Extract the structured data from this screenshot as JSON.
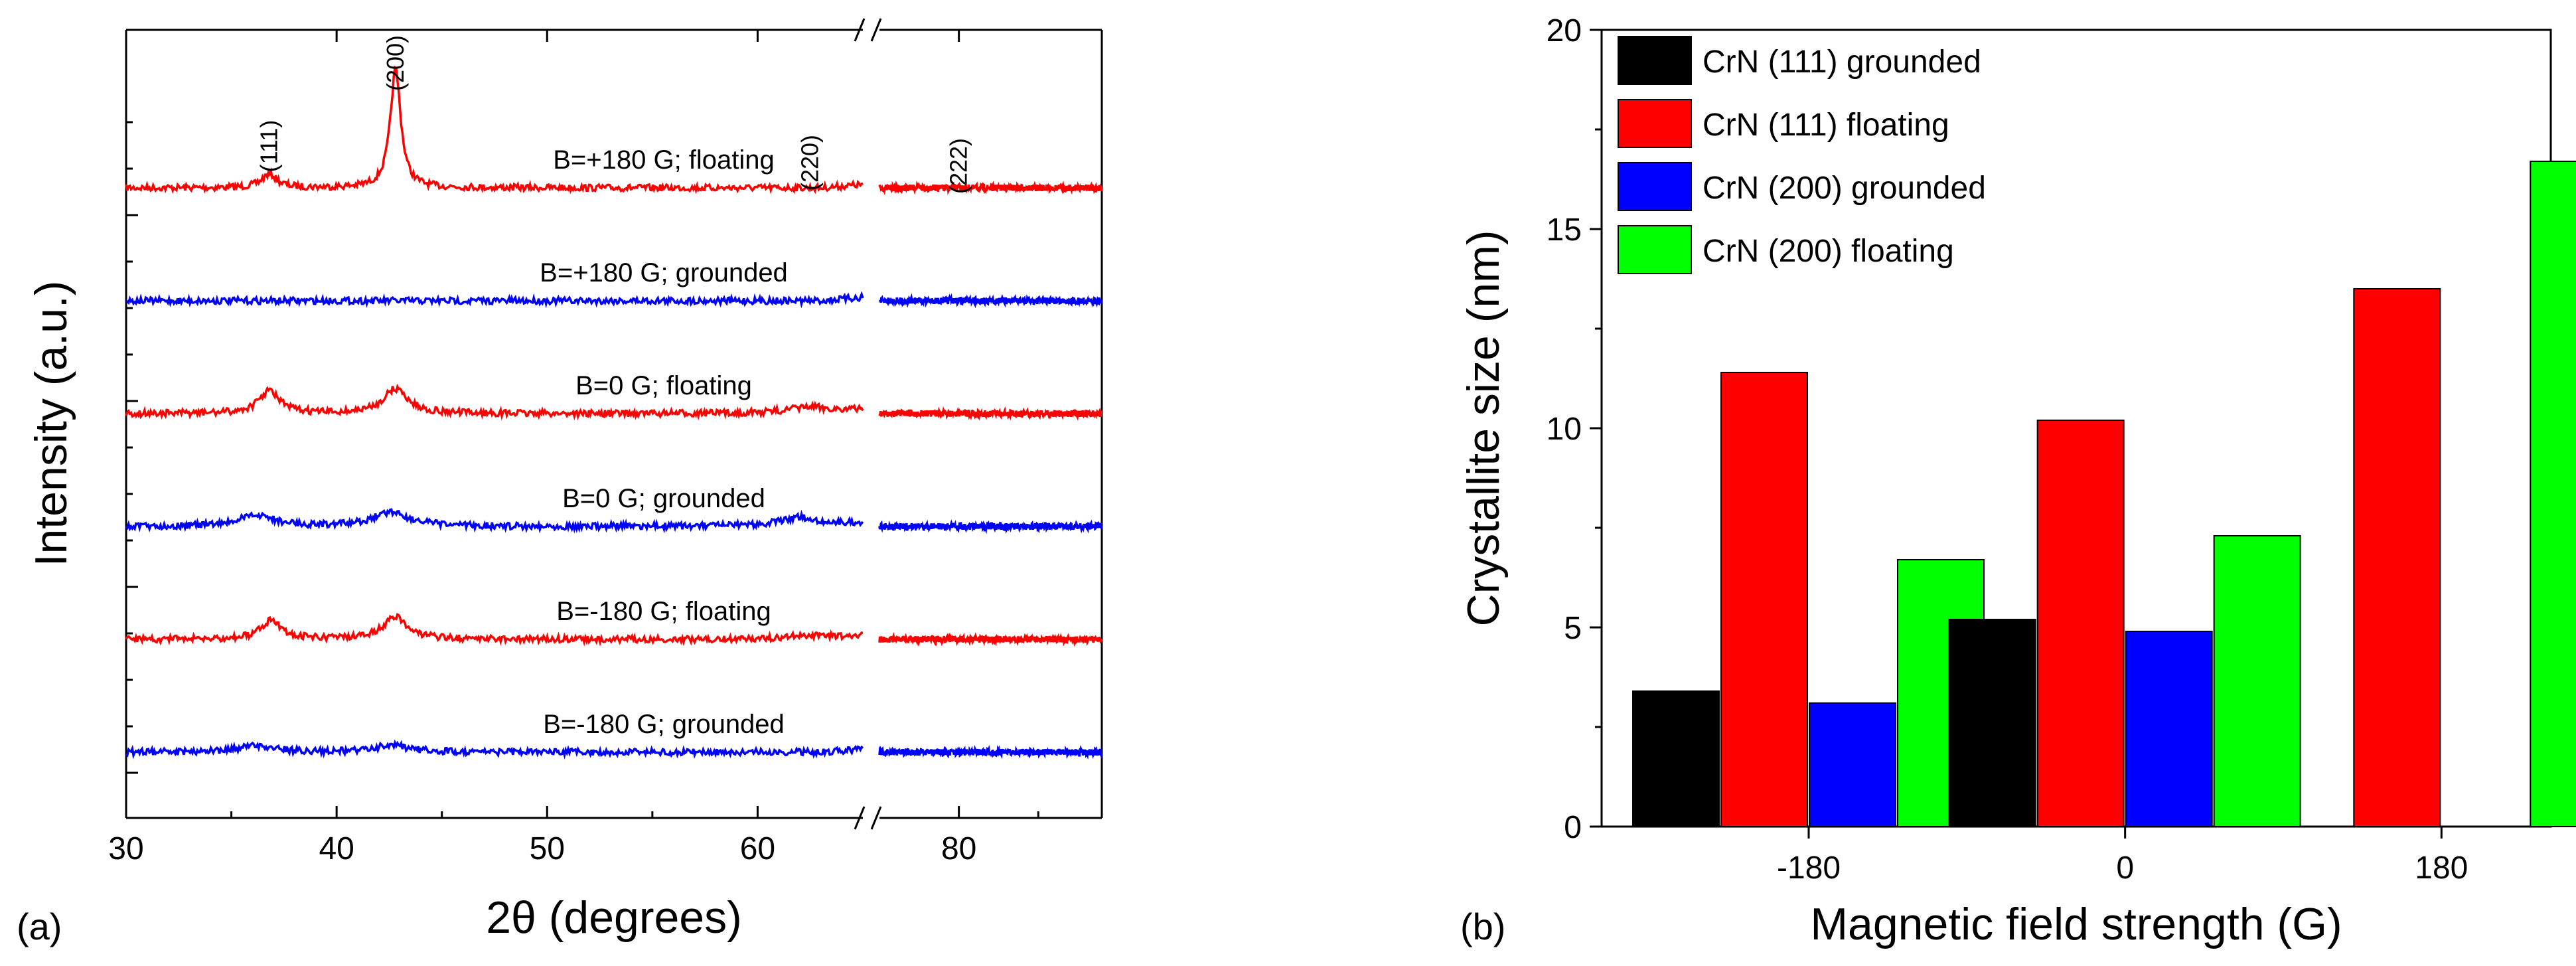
{
  "chart_data": [
    {
      "panel": "(a)",
      "type": "line",
      "title": "",
      "xlabel": "2θ (degrees)",
      "ylabel": "Intensity (a.u.)",
      "xlim": [
        30,
        89
      ],
      "axis_break": [
        65,
        75
      ],
      "x_ticks": [
        30,
        40,
        50,
        60,
        80
      ],
      "peak_labels": [
        {
          "label": "(111)",
          "x": 36.8
        },
        {
          "label": "(200)",
          "x": 42.8
        },
        {
          "label": "(220)",
          "x": 62.5
        },
        {
          "label": "(222)",
          "x": 80
        }
      ],
      "series": [
        {
          "name": "B=+180 G; floating",
          "color": "#ff0000",
          "baseline": 6,
          "peaks": [
            {
              "x": 36.8,
              "h": 0.12,
              "w": 0.45
            },
            {
              "x": 42.8,
              "h": 1.05,
              "w": 0.3
            }
          ]
        },
        {
          "name": "B=+180 G; grounded",
          "color": "#0000ff",
          "baseline": 5,
          "peaks": []
        },
        {
          "name": "B=0 G; floating",
          "color": "#ff0000",
          "baseline": 4,
          "peaks": [
            {
              "x": 36.8,
              "h": 0.2,
              "w": 0.6
            },
            {
              "x": 42.8,
              "h": 0.22,
              "w": 0.7
            },
            {
              "x": 62.5,
              "h": 0.06,
              "w": 1.3
            }
          ]
        },
        {
          "name": "B=0 G; grounded",
          "color": "#0000ff",
          "baseline": 3,
          "peaks": [
            {
              "x": 36.2,
              "h": 0.1,
              "w": 1.0
            },
            {
              "x": 42.6,
              "h": 0.13,
              "w": 1.0
            },
            {
              "x": 62,
              "h": 0.08,
              "w": 1.2
            }
          ]
        },
        {
          "name": "B=-180 G; floating",
          "color": "#ff0000",
          "baseline": 2,
          "peaks": [
            {
              "x": 36.9,
              "h": 0.17,
              "w": 0.6
            },
            {
              "x": 42.8,
              "h": 0.2,
              "w": 0.7
            },
            {
              "x": 62.5,
              "h": 0.04,
              "w": 1.3
            }
          ]
        },
        {
          "name": "B=-180 G; grounded",
          "color": "#0000ff",
          "baseline": 1,
          "peaks": [
            {
              "x": 36.2,
              "h": 0.06,
              "w": 1.0
            },
            {
              "x": 42.6,
              "h": 0.06,
              "w": 1.0
            }
          ]
        }
      ]
    },
    {
      "panel": "(b)",
      "type": "bar",
      "title": "",
      "xlabel": "Magnetic field strength (G)",
      "ylabel": "Crystallite size (nm)",
      "categories": [
        "-180",
        "0",
        "180"
      ],
      "ylim": [
        0,
        20
      ],
      "y_ticks": [
        0,
        5,
        10,
        15,
        20
      ],
      "legend_position": "top-left",
      "series": [
        {
          "name": "CrN (111) grounded",
          "color": "#000000",
          "values": [
            3.4,
            5.2,
            null
          ]
        },
        {
          "name": "CrN (111) floating",
          "color": "#ff0000",
          "values": [
            11.4,
            10.2,
            13.5
          ]
        },
        {
          "name": "CrN (200) grounded",
          "color": "#0000ff",
          "values": [
            3.1,
            4.9,
            null
          ]
        },
        {
          "name": "CrN (200) floating",
          "color": "#00ff00",
          "values": [
            6.7,
            7.3,
            16.7
          ]
        }
      ]
    }
  ]
}
